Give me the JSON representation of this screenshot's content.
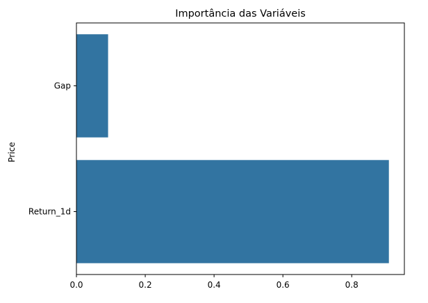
{
  "chart_data": {
    "type": "bar",
    "orientation": "horizontal",
    "title": "Importância das Variáveis",
    "xlabel": "",
    "ylabel": "Price",
    "categories": [
      "Gap",
      "Return_1d"
    ],
    "values": [
      0.092,
      0.908
    ],
    "xlim": [
      0,
      0.953
    ],
    "xticks": [
      0.0,
      0.2,
      0.4,
      0.6,
      0.8
    ],
    "xtick_labels": [
      "0.0",
      "0.2",
      "0.4",
      "0.6",
      "0.8"
    ],
    "grid": false,
    "legend": "none",
    "bar_color": "#3274a1"
  }
}
